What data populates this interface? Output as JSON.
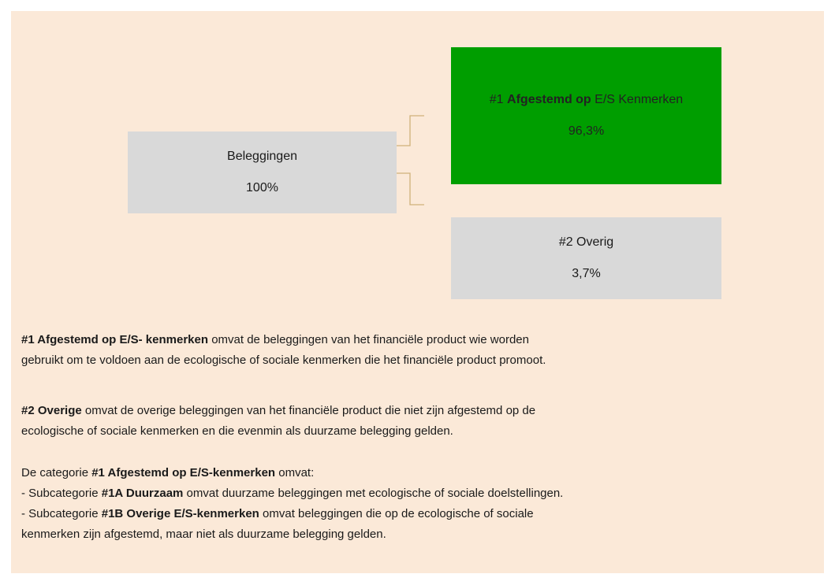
{
  "nodes": [
    {
      "label": [
        {
          "text": "Beleggingen",
          "bold": false
        }
      ],
      "value": "100%"
    },
    {
      "label": [
        {
          "text": "#1 ",
          "bold": false
        },
        {
          "text": "Afgestemd op",
          "bold": true
        },
        {
          "text": " E/S Kenmerken",
          "bold": false
        }
      ],
      "value": "96,3%"
    },
    {
      "label": [
        {
          "text": "#2 Overig",
          "bold": false
        }
      ],
      "value": "3,7%"
    }
  ],
  "paragraphs": [
    [
      [
        {
          "text": "#1 Afgestemd op E/S- kenmerken",
          "bold": true
        },
        {
          "text": " omvat de beleggingen van het financiële product wie worden",
          "bold": false
        }
      ],
      [
        {
          "text": "gebruikt om te voldoen aan de ecologische of sociale kenmerken die het financiële product promoot.",
          "bold": false
        }
      ]
    ],
    [
      [
        {
          "text": "#2 Overige",
          "bold": true
        },
        {
          "text": " omvat de overige beleggingen van het financiële product die niet zijn afgestemd op de",
          "bold": false
        }
      ],
      [
        {
          "text": "ecologische of sociale kenmerken en die evenmin als duurzame belegging gelden.",
          "bold": false
        }
      ]
    ],
    [
      [
        {
          "text": "De categorie ",
          "bold": false
        },
        {
          "text": "#1 Afgestemd op E/S-kenmerken",
          "bold": true
        },
        {
          "text": " omvat:",
          "bold": false
        }
      ],
      [
        {
          "text": "- Subcategorie ",
          "bold": false
        },
        {
          "text": "#1A Duurzaam",
          "bold": true
        },
        {
          "text": " omvat duurzame beleggingen met ecologische of sociale doelstellingen.",
          "bold": false
        }
      ],
      [
        {
          "text": "- Subcategorie ",
          "bold": false
        },
        {
          "text": "#1B Overige E/S-kenmerken",
          "bold": true
        },
        {
          "text": " omvat beleggingen die op de ecologische of sociale",
          "bold": false
        }
      ],
      [
        {
          "text": "kenmerken zijn afgestemd, maar niet als duurzame belegging gelden.",
          "bold": false
        }
      ]
    ]
  ]
}
